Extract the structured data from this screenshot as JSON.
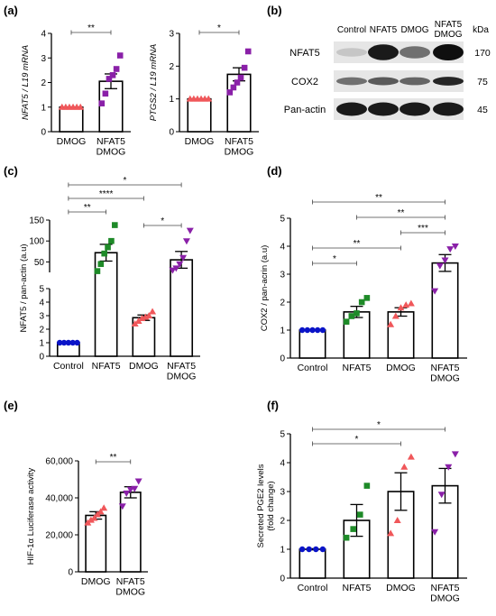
{
  "panels": {
    "a": "(a)",
    "b": "(b)",
    "c": "(c)",
    "d": "(d)",
    "e": "(e)",
    "f": "(f)"
  },
  "colors": {
    "control": "#0a14c8",
    "nfat5": "#1e8a28",
    "dmog": "#f0575a",
    "combo": "#8a20a8",
    "axis": "#000000"
  },
  "blot": {
    "kda_label": "kDa",
    "lanes": [
      "Control",
      "NFAT5",
      "DMOG",
      "NFAT5\nDMOG"
    ],
    "rows": [
      {
        "name": "NFAT5",
        "kda": "170",
        "intensity": [
          0.15,
          0.95,
          0.55,
          1.0
        ]
      },
      {
        "name": "COX2",
        "kda": "75",
        "intensity": [
          0.55,
          0.65,
          0.6,
          0.9
        ]
      },
      {
        "name": "Pan-actin",
        "kda": "45",
        "intensity": [
          0.95,
          0.95,
          0.95,
          0.95
        ]
      }
    ]
  },
  "chart_data": [
    {
      "id": "a1",
      "type": "bar",
      "categories": [
        "DMOG",
        "NFAT5\nDMOG"
      ],
      "values": [
        1.0,
        2.05
      ],
      "sem": [
        0.0,
        0.3
      ],
      "points": [
        [
          1,
          1,
          1,
          1,
          1,
          1
        ],
        [
          1.15,
          1.55,
          2.15,
          2.3,
          2.55,
          3.1
        ]
      ],
      "point_colors": [
        "dmog",
        "combo"
      ],
      "point_shapes": [
        "triangle",
        "square"
      ],
      "ylabel": "NFAT5 / L19 mRNA",
      "ylim": [
        0,
        4
      ],
      "yticks": [
        0,
        1,
        2,
        3,
        4
      ],
      "significance": [
        {
          "from": 0,
          "to": 1,
          "label": "**"
        }
      ]
    },
    {
      "id": "a2",
      "type": "bar",
      "categories": [
        "DMOG",
        "NFAT5\nDMOG"
      ],
      "values": [
        1.0,
        1.75
      ],
      "sem": [
        0.0,
        0.2
      ],
      "points": [
        [
          1,
          1,
          1,
          1,
          1,
          1
        ],
        [
          1.2,
          1.35,
          1.5,
          1.65,
          1.95,
          2.45
        ]
      ],
      "point_colors": [
        "dmog",
        "combo"
      ],
      "point_shapes": [
        "triangle",
        "square"
      ],
      "ylabel": "PTGS2 / L19 mRNA",
      "ylim": [
        0,
        3
      ],
      "yticks": [
        0,
        1,
        2,
        3
      ],
      "significance": [
        {
          "from": 0,
          "to": 1,
          "label": "*"
        }
      ]
    },
    {
      "id": "c",
      "type": "bar",
      "categories": [
        "Control",
        "NFAT5",
        "DMOG",
        "NFAT5\nDMOG"
      ],
      "values": [
        1.0,
        72,
        2.85,
        55
      ],
      "sem": [
        0.05,
        20,
        0.2,
        20
      ],
      "points": [
        [
          1,
          1,
          1,
          1,
          1
        ],
        [
          28,
          45,
          70,
          85,
          100,
          138
        ],
        [
          2.4,
          2.6,
          2.8,
          2.9,
          3.0,
          3.3
        ],
        [
          30,
          35,
          45,
          60,
          100,
          125
        ]
      ],
      "point_colors": [
        "control",
        "nfat5",
        "dmog",
        "combo"
      ],
      "point_shapes": [
        "circle",
        "square",
        "triangle",
        "triangle-down"
      ],
      "ylabel": "NFAT5 / pan-actin (a.u)",
      "ylim": [
        0,
        150
      ],
      "broken_axis": {
        "lower": [
          0,
          5
        ],
        "upper": [
          25,
          150
        ]
      },
      "yticks_lower": [
        0,
        1,
        2,
        3,
        4,
        5
      ],
      "yticks_upper": [
        50,
        100,
        150
      ],
      "significance": [
        {
          "from": 0,
          "to": 3,
          "label": "*"
        },
        {
          "from": 0,
          "to": 2,
          "label": "****"
        },
        {
          "from": 0,
          "to": 1,
          "label": "**"
        },
        {
          "from": 2,
          "to": 3,
          "label": "*"
        }
      ]
    },
    {
      "id": "d",
      "type": "bar",
      "categories": [
        "Control",
        "NFAT5",
        "DMOG",
        "NFAT5\nDMOG"
      ],
      "values": [
        1.0,
        1.65,
        1.65,
        3.4
      ],
      "sem": [
        0.03,
        0.2,
        0.15,
        0.3
      ],
      "points": [
        [
          1,
          1,
          1,
          1,
          1
        ],
        [
          1.3,
          1.5,
          1.6,
          2.0,
          2.15
        ],
        [
          1.2,
          1.5,
          1.8,
          1.9,
          1.95
        ],
        [
          2.4,
          3.3,
          3.5,
          3.9,
          4.0
        ]
      ],
      "point_colors": [
        "control",
        "nfat5",
        "dmog",
        "combo"
      ],
      "point_shapes": [
        "circle",
        "square",
        "triangle",
        "triangle-down"
      ],
      "ylabel": "COX2 / pan-acrin (a.u)",
      "ylim": [
        0,
        5
      ],
      "yticks": [
        0,
        1,
        2,
        3,
        4,
        5
      ],
      "significance": [
        {
          "from": 0,
          "to": 3,
          "label": "**"
        },
        {
          "from": 1,
          "to": 3,
          "label": "**"
        },
        {
          "from": 2,
          "to": 3,
          "label": "***"
        },
        {
          "from": 0,
          "to": 2,
          "label": "**"
        },
        {
          "from": 0,
          "to": 1,
          "label": "*"
        }
      ]
    },
    {
      "id": "e",
      "type": "bar",
      "categories": [
        "DMOG",
        "NFAT5\nDMOG"
      ],
      "values": [
        30500,
        43000
      ],
      "sem": [
        2000,
        3000
      ],
      "points": [
        [
          26500,
          28000,
          29000,
          31000,
          32500,
          34500
        ],
        [
          35500,
          42500,
          44500,
          45000,
          49000
        ]
      ],
      "point_colors": [
        "dmog",
        "combo"
      ],
      "point_shapes": [
        "triangle",
        "triangle-down"
      ],
      "ylabel": "HIF-1α Luciferase activity",
      "ylim": [
        0,
        60000
      ],
      "yticks": [
        0,
        20000,
        40000,
        60000
      ],
      "ytick_labels": [
        "0",
        "20,000",
        "40,000",
        "60,000"
      ],
      "significance": [
        {
          "from": 0,
          "to": 1,
          "label": "**"
        }
      ]
    },
    {
      "id": "f",
      "type": "bar",
      "categories": [
        "Control",
        "NFAT5",
        "DMOG",
        "NFAT5\nDMOG"
      ],
      "values": [
        1.0,
        2.0,
        3.0,
        3.2
      ],
      "sem": [
        0.02,
        0.55,
        0.65,
        0.6
      ],
      "points": [
        [
          1,
          1,
          1,
          1
        ],
        [
          1.4,
          1.7,
          2.2,
          3.2
        ],
        [
          1.55,
          2.0,
          3.85,
          4.2
        ],
        [
          1.6,
          2.9,
          3.85,
          4.3
        ]
      ],
      "point_colors": [
        "control",
        "nfat5",
        "dmog",
        "combo"
      ],
      "point_shapes": [
        "circle",
        "square",
        "triangle",
        "triangle-down"
      ],
      "ylabel": "Secreted PGE2 levels\n(fold change)",
      "ylim": [
        0,
        5
      ],
      "yticks": [
        0,
        1,
        2,
        3,
        4,
        5
      ],
      "significance": [
        {
          "from": 0,
          "to": 3,
          "label": "*"
        },
        {
          "from": 0,
          "to": 2,
          "label": "*"
        }
      ]
    }
  ]
}
